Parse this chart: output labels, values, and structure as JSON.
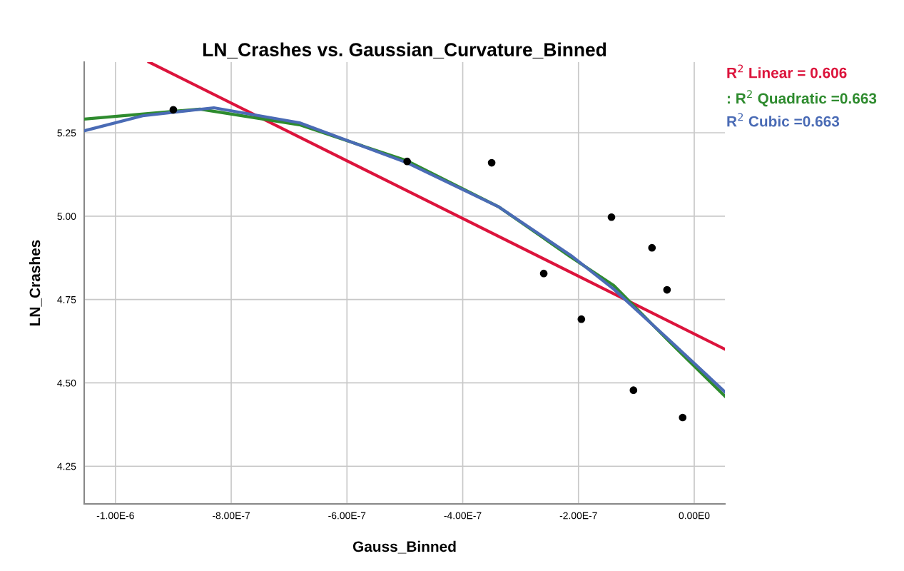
{
  "chart_data": {
    "type": "scatter",
    "title": "LN_Crashes vs. Gaussian_Curvature_Binned",
    "xlabel": "Gauss_Binned",
    "ylabel": "LN_Crashes",
    "xlim": [
      -1.054e-06,
      5.3e-08
    ],
    "ylim": [
      4.137,
      5.462
    ],
    "xticks": [
      {
        "value": -1e-06,
        "label": "-1.00E-6"
      },
      {
        "value": -8e-07,
        "label": "-8.00E-7"
      },
      {
        "value": -6e-07,
        "label": "-6.00E-7"
      },
      {
        "value": -4e-07,
        "label": "-4.00E-7"
      },
      {
        "value": -2e-07,
        "label": "-2.00E-7"
      },
      {
        "value": 0,
        "label": "0.00E0"
      }
    ],
    "yticks": [
      {
        "value": 4.25,
        "label": "4.25"
      },
      {
        "value": 4.5,
        "label": "4.50"
      },
      {
        "value": 4.75,
        "label": "4.75"
      },
      {
        "value": 5.0,
        "label": "5.00"
      },
      {
        "value": 5.25,
        "label": "5.25"
      }
    ],
    "grid": true,
    "legend": "top right",
    "series": [
      {
        "color": "#000000",
        "marker": "circle",
        "x": [
          -9e-07,
          -4.96e-07,
          -3.5e-07,
          -2.6e-07,
          -1.95e-07,
          -1.43e-07,
          -1.05e-07,
          -7.3e-08,
          -4.7e-08,
          -2e-08
        ],
        "values": [
          5.319,
          5.164,
          5.16,
          4.828,
          4.691,
          4.997,
          4.478,
          4.905,
          4.779,
          4.396
        ]
      },
      {
        "type": "line",
        "name": "R$^{2}$ Linear = 0.606",
        "color": "#dc143c",
        "x": [
          -9.42e-07,
          5.3e-08
        ],
        "values": [
          5.462,
          4.601
        ]
      },
      {
        "type": "line",
        "name": ": R$^{2}$ Quadratic =0.663",
        "color": "#2e8b2e",
        "x": [
          -1.054e-06,
          -8.54e-07,
          -6.82e-07,
          -4.96e-07,
          -3.37e-07,
          -2.13e-07,
          -1.39e-07,
          -4.1e-08,
          5.3e-08
        ],
        "values": [
          5.291,
          5.321,
          5.274,
          5.166,
          5.027,
          4.877,
          4.792,
          4.62,
          4.46
        ]
      },
      {
        "type": "line",
        "name": "R$^{2}$ Cubic =0.663",
        "color": "#4a6bb5",
        "x": [
          -1.054e-06,
          -9.53e-07,
          -8.3e-07,
          -6.82e-07,
          -4.96e-07,
          -3.37e-07,
          -2.13e-07,
          -1.39e-07,
          -4.1e-08,
          5.3e-08
        ],
        "values": [
          5.256,
          5.301,
          5.325,
          5.28,
          5.16,
          5.027,
          4.882,
          4.781,
          4.625,
          4.473
        ]
      }
    ]
  }
}
